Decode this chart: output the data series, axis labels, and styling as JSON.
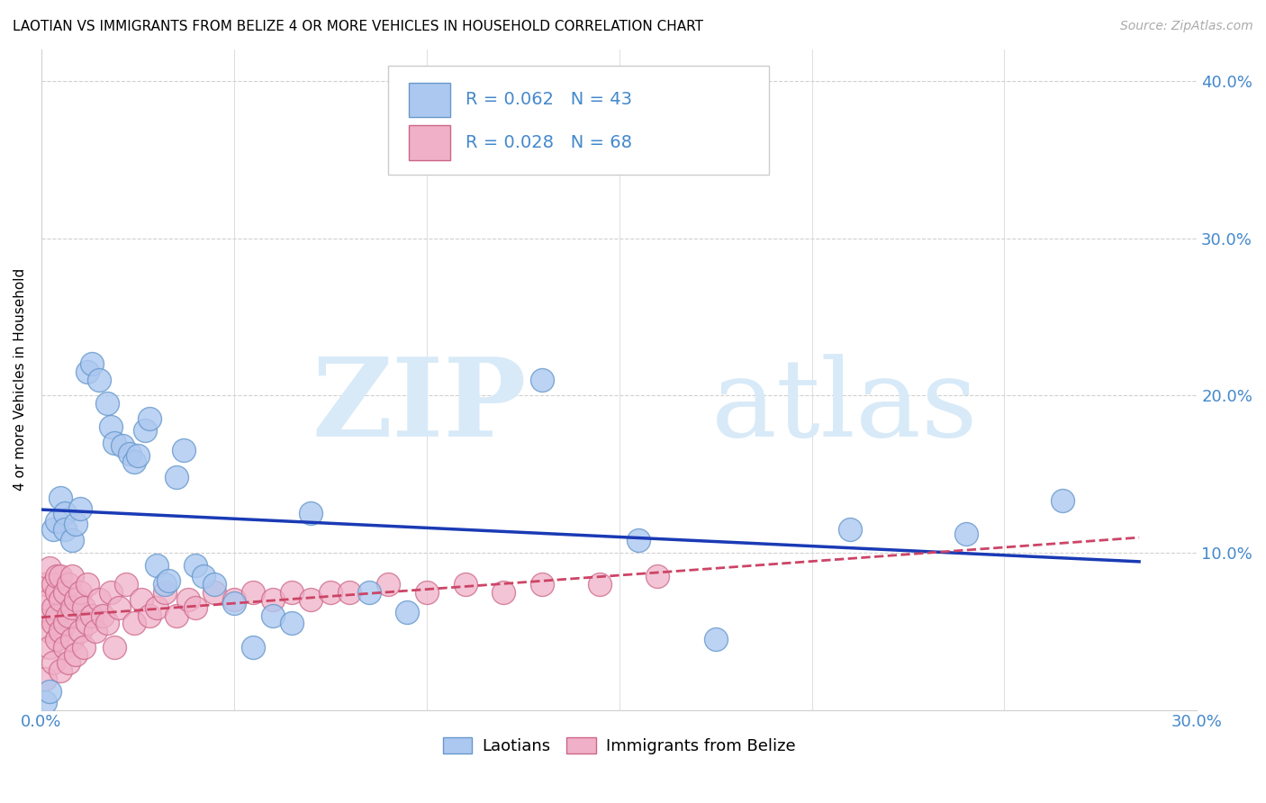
{
  "title": "LAOTIAN VS IMMIGRANTS FROM BELIZE 4 OR MORE VEHICLES IN HOUSEHOLD CORRELATION CHART",
  "source": "Source: ZipAtlas.com",
  "ylabel": "4 or more Vehicles in Household",
  "xlim": [
    0.0,
    0.3
  ],
  "ylim": [
    0.0,
    0.42
  ],
  "xticks": [
    0.0,
    0.05,
    0.1,
    0.15,
    0.2,
    0.25,
    0.3
  ],
  "yticks": [
    0.0,
    0.1,
    0.2,
    0.3,
    0.4
  ],
  "grid_color": "#d0d0d0",
  "background_color": "#ffffff",
  "laotian_color": "#adc8f0",
  "laotian_edge_color": "#6699cc",
  "belize_color": "#f0b0c8",
  "belize_edge_color": "#cc6688",
  "laotian_line_color": "#1a3ab5",
  "belize_line_color": "#cc4466",
  "axis_label_color": "#4488cc",
  "tick_label_color": "#4488cc",
  "legend_label1": "Laotians",
  "legend_label2": "Immigrants from Belize",
  "laotian_x": [
    0.001,
    0.002,
    0.003,
    0.004,
    0.005,
    0.006,
    0.006,
    0.008,
    0.009,
    0.01,
    0.012,
    0.013,
    0.015,
    0.017,
    0.018,
    0.019,
    0.021,
    0.023,
    0.024,
    0.025,
    0.027,
    0.028,
    0.03,
    0.032,
    0.033,
    0.035,
    0.037,
    0.04,
    0.042,
    0.045,
    0.05,
    0.055,
    0.06,
    0.065,
    0.07,
    0.085,
    0.095,
    0.13,
    0.155,
    0.175,
    0.21,
    0.24,
    0.265
  ],
  "laotian_y": [
    0.005,
    0.012,
    0.115,
    0.12,
    0.135,
    0.125,
    0.115,
    0.108,
    0.118,
    0.128,
    0.215,
    0.22,
    0.21,
    0.195,
    0.18,
    0.17,
    0.168,
    0.163,
    0.158,
    0.162,
    0.178,
    0.185,
    0.092,
    0.08,
    0.082,
    0.148,
    0.165,
    0.092,
    0.085,
    0.08,
    0.068,
    0.04,
    0.06,
    0.055,
    0.125,
    0.075,
    0.062,
    0.21,
    0.108,
    0.045,
    0.115,
    0.112,
    0.133
  ],
  "belize_x": [
    0.001,
    0.001,
    0.001,
    0.002,
    0.002,
    0.002,
    0.002,
    0.003,
    0.003,
    0.003,
    0.003,
    0.004,
    0.004,
    0.004,
    0.004,
    0.005,
    0.005,
    0.005,
    0.005,
    0.006,
    0.006,
    0.006,
    0.007,
    0.007,
    0.007,
    0.008,
    0.008,
    0.008,
    0.009,
    0.009,
    0.01,
    0.01,
    0.011,
    0.011,
    0.012,
    0.012,
    0.013,
    0.014,
    0.015,
    0.016,
    0.017,
    0.018,
    0.019,
    0.02,
    0.022,
    0.024,
    0.026,
    0.028,
    0.03,
    0.032,
    0.035,
    0.038,
    0.04,
    0.045,
    0.05,
    0.055,
    0.06,
    0.065,
    0.07,
    0.075,
    0.08,
    0.09,
    0.1,
    0.11,
    0.12,
    0.13,
    0.145,
    0.16
  ],
  "belize_y": [
    0.02,
    0.06,
    0.08,
    0.05,
    0.07,
    0.09,
    0.04,
    0.03,
    0.055,
    0.065,
    0.08,
    0.045,
    0.06,
    0.075,
    0.085,
    0.025,
    0.05,
    0.07,
    0.085,
    0.04,
    0.055,
    0.075,
    0.03,
    0.06,
    0.08,
    0.045,
    0.065,
    0.085,
    0.035,
    0.07,
    0.05,
    0.075,
    0.04,
    0.065,
    0.055,
    0.08,
    0.06,
    0.05,
    0.07,
    0.06,
    0.055,
    0.075,
    0.04,
    0.065,
    0.08,
    0.055,
    0.07,
    0.06,
    0.065,
    0.075,
    0.06,
    0.07,
    0.065,
    0.075,
    0.07,
    0.075,
    0.07,
    0.075,
    0.07,
    0.075,
    0.075,
    0.08,
    0.075,
    0.08,
    0.075,
    0.08,
    0.08,
    0.085
  ]
}
